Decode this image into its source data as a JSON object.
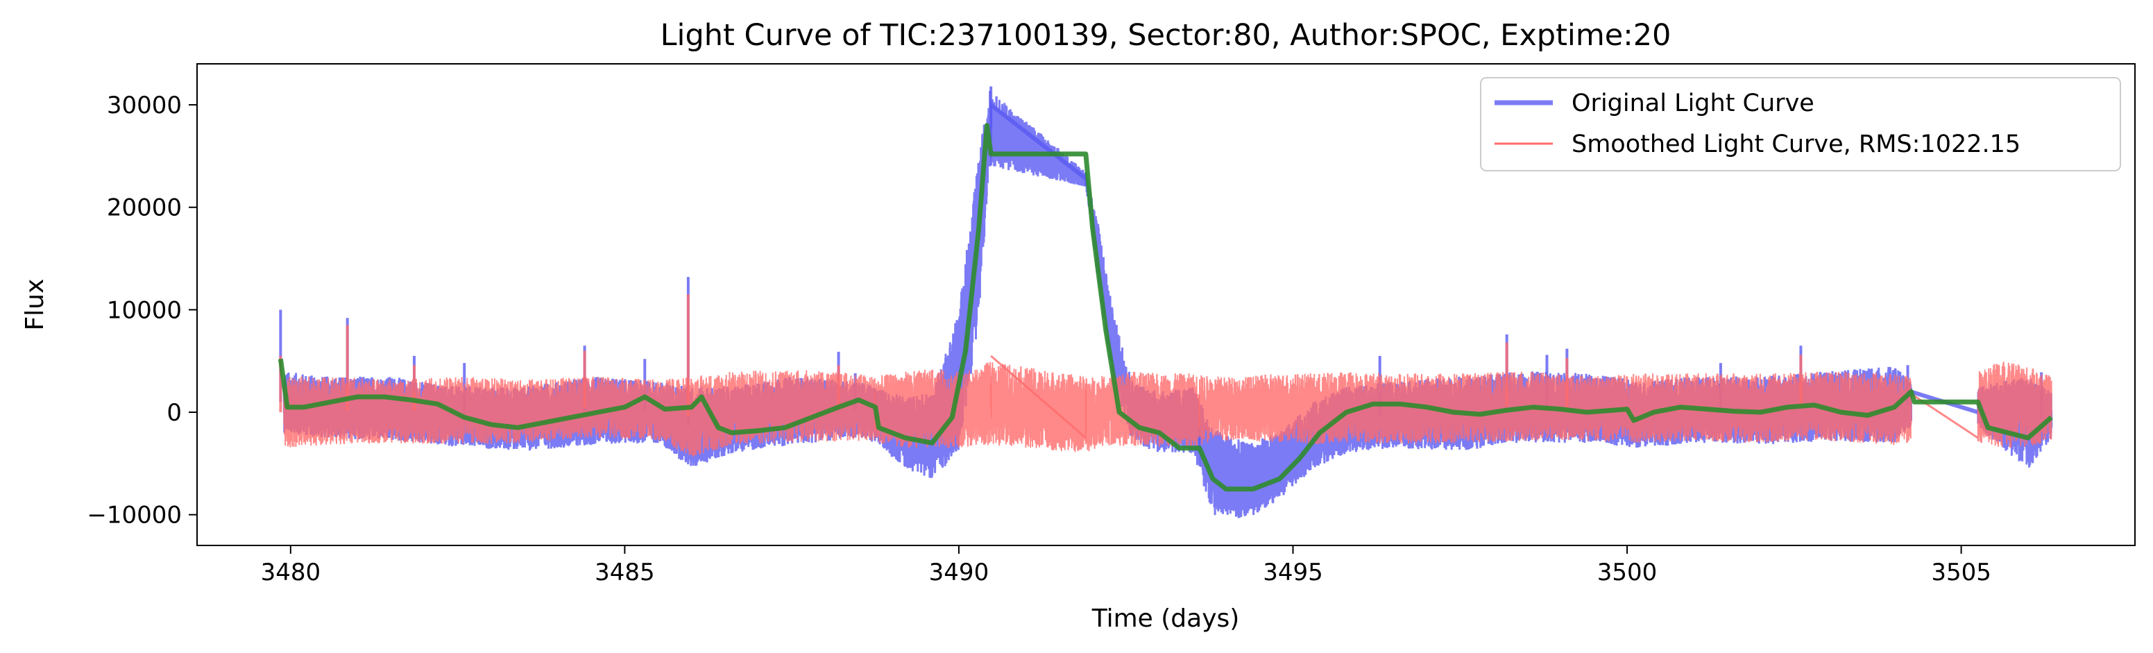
{
  "chart_data": {
    "type": "line",
    "title": "Light Curve of TIC:237100139, Sector:80, Author:SPOC, Exptime:20",
    "xlabel": "Time (days)",
    "ylabel": "Flux",
    "xlim": [
      3478.6,
      3507.6
    ],
    "ylim": [
      -13000,
      34000
    ],
    "xticks": [
      3480,
      3485,
      3490,
      3495,
      3500,
      3505
    ],
    "xtick_labels": [
      "3480",
      "3485",
      "3490",
      "3495",
      "3500",
      "3505"
    ],
    "yticks": [
      -10000,
      0,
      10000,
      20000,
      30000
    ],
    "ytick_labels": [
      "−10000",
      "0",
      "10000",
      "20000",
      "30000"
    ],
    "grid": false,
    "legend_position": "top-right",
    "segments": [
      [
        3479.9,
        3488.75
      ],
      [
        3488.75,
        3490.48
      ],
      [
        3490.48,
        3491.9
      ],
      [
        3491.9,
        3493.6
      ],
      [
        3493.6,
        3504.25
      ],
      [
        3505.25,
        3506.35
      ]
    ],
    "series": [
      {
        "name": "Original Light Curve",
        "color": "#5a5af2",
        "band_low": [
          [
            3479.9,
            -2000
          ],
          [
            3480.5,
            -2500
          ],
          [
            3481.5,
            -2800
          ],
          [
            3482.5,
            -3400
          ],
          [
            3483.5,
            -3800
          ],
          [
            3484.5,
            -3200
          ],
          [
            3485.5,
            -3000
          ],
          [
            3486.0,
            -5500
          ],
          [
            3486.6,
            -4000
          ],
          [
            3487.5,
            -3200
          ],
          [
            3488.5,
            -2500
          ],
          [
            3488.75,
            -3000
          ],
          [
            3489.2,
            -5500
          ],
          [
            3489.6,
            -6500
          ],
          [
            3490.0,
            -4000
          ],
          [
            3490.3,
            9000
          ],
          [
            3490.45,
            24000
          ],
          [
            3491.9,
            22000
          ],
          [
            3492.1,
            12000
          ],
          [
            3492.3,
            3000
          ],
          [
            3492.6,
            -3000
          ],
          [
            3493.0,
            -4000
          ],
          [
            3493.5,
            -4000
          ],
          [
            3493.8,
            -10000
          ],
          [
            3494.3,
            -10500
          ],
          [
            3494.8,
            -8500
          ],
          [
            3495.3,
            -5500
          ],
          [
            3495.8,
            -4000
          ],
          [
            3496.5,
            -3500
          ],
          [
            3497.5,
            -3800
          ],
          [
            3498.5,
            -3000
          ],
          [
            3499.5,
            -3000
          ],
          [
            3500.2,
            -3600
          ],
          [
            3501.0,
            -3000
          ],
          [
            3502.0,
            -3200
          ],
          [
            3503.0,
            -2800
          ],
          [
            3504.0,
            -3000
          ],
          [
            3504.25,
            -1500
          ],
          [
            3505.25,
            -1500
          ],
          [
            3505.6,
            -3500
          ],
          [
            3506.0,
            -5500
          ],
          [
            3506.35,
            -3000
          ]
        ],
        "band_high": [
          [
            3479.9,
            4000
          ],
          [
            3480.5,
            3500
          ],
          [
            3481.5,
            3500
          ],
          [
            3482.5,
            2500
          ],
          [
            3483.5,
            2500
          ],
          [
            3484.5,
            3500
          ],
          [
            3485.5,
            3000
          ],
          [
            3486.0,
            2500
          ],
          [
            3486.6,
            2500
          ],
          [
            3487.5,
            3500
          ],
          [
            3488.5,
            3000
          ],
          [
            3488.75,
            2500
          ],
          [
            3489.2,
            1500
          ],
          [
            3489.6,
            2000
          ],
          [
            3490.0,
            10000
          ],
          [
            3490.3,
            25000
          ],
          [
            3490.45,
            31500
          ],
          [
            3491.9,
            23500
          ],
          [
            3492.1,
            18000
          ],
          [
            3492.3,
            10000
          ],
          [
            3492.6,
            3000
          ],
          [
            3493.0,
            2000
          ],
          [
            3493.5,
            2500
          ],
          [
            3493.8,
            -1500
          ],
          [
            3494.3,
            -3000
          ],
          [
            3494.8,
            -2000
          ],
          [
            3495.3,
            1000
          ],
          [
            3495.8,
            2500
          ],
          [
            3496.5,
            3000
          ],
          [
            3497.5,
            3500
          ],
          [
            3498.5,
            4000
          ],
          [
            3499.5,
            3800
          ],
          [
            3500.2,
            3000
          ],
          [
            3501.0,
            3500
          ],
          [
            3502.0,
            3500
          ],
          [
            3503.0,
            4000
          ],
          [
            3504.0,
            4500
          ],
          [
            3504.25,
            3000
          ],
          [
            3505.25,
            2500
          ],
          [
            3505.6,
            3000
          ],
          [
            3506.0,
            3500
          ],
          [
            3506.35,
            2000
          ]
        ],
        "spikes": [
          [
            3479.85,
            10000
          ],
          [
            3480.85,
            9200
          ],
          [
            3481.85,
            5500
          ],
          [
            3482.6,
            4800
          ],
          [
            3484.4,
            6500
          ],
          [
            3485.3,
            5200
          ],
          [
            3485.95,
            13200
          ],
          [
            3488.2,
            5900
          ],
          [
            3488.45,
            3800
          ],
          [
            3490.48,
            31800
          ],
          [
            3496.3,
            5500
          ],
          [
            3498.2,
            7600
          ],
          [
            3498.8,
            5600
          ],
          [
            3499.1,
            6200
          ],
          [
            3501.4,
            4800
          ],
          [
            3502.6,
            6500
          ],
          [
            3504.2,
            4600
          ],
          [
            3506.2,
            3900
          ]
        ],
        "line": [
          [
            3490.48,
            30000
          ],
          [
            3491.9,
            22800
          ],
          [
            3504.25,
            2000
          ],
          [
            3505.25,
            0
          ]
        ]
      },
      {
        "name": "Smoothed Light Curve, RMS:1022.15",
        "color": "#ff6b6b",
        "band_low": [
          [
            3479.9,
            -3500
          ],
          [
            3480.5,
            -3200
          ],
          [
            3481.5,
            -3000
          ],
          [
            3482.5,
            -3200
          ],
          [
            3483.5,
            -3000
          ],
          [
            3484.5,
            -2500
          ],
          [
            3485.5,
            -2800
          ],
          [
            3486.0,
            -4500
          ],
          [
            3486.6,
            -3200
          ],
          [
            3487.5,
            -3000
          ],
          [
            3488.5,
            -2800
          ],
          [
            3488.75,
            -3000
          ],
          [
            3489.2,
            -3500
          ],
          [
            3489.6,
            -3500
          ],
          [
            3490.0,
            -3500
          ],
          [
            3490.3,
            -3200
          ],
          [
            3490.45,
            -3200
          ],
          [
            3491.9,
            -4000
          ],
          [
            3492.1,
            -3500
          ],
          [
            3492.3,
            -3200
          ],
          [
            3492.6,
            -3500
          ],
          [
            3493.0,
            -3500
          ],
          [
            3493.5,
            -3500
          ],
          [
            3493.8,
            -2800
          ],
          [
            3494.3,
            -2800
          ],
          [
            3494.8,
            -3000
          ],
          [
            3495.3,
            -3200
          ],
          [
            3495.8,
            -3000
          ],
          [
            3496.5,
            -3200
          ],
          [
            3497.5,
            -3000
          ],
          [
            3498.5,
            -2800
          ],
          [
            3499.5,
            -2800
          ],
          [
            3500.2,
            -3000
          ],
          [
            3501.0,
            -2800
          ],
          [
            3502.0,
            -3000
          ],
          [
            3503.0,
            -2800
          ],
          [
            3504.0,
            -3200
          ],
          [
            3504.25,
            -3000
          ],
          [
            3505.25,
            -3000
          ],
          [
            3505.6,
            -3500
          ],
          [
            3506.0,
            -3500
          ],
          [
            3506.35,
            -2800
          ]
        ],
        "band_high": [
          [
            3479.9,
            3500
          ],
          [
            3480.5,
            3500
          ],
          [
            3481.5,
            3200
          ],
          [
            3482.5,
            3500
          ],
          [
            3483.5,
            3200
          ],
          [
            3484.5,
            3500
          ],
          [
            3485.5,
            3200
          ],
          [
            3486.0,
            3500
          ],
          [
            3486.6,
            4000
          ],
          [
            3487.5,
            4200
          ],
          [
            3488.5,
            3800
          ],
          [
            3488.75,
            3500
          ],
          [
            3489.2,
            4000
          ],
          [
            3489.6,
            4200
          ],
          [
            3490.0,
            4000
          ],
          [
            3490.3,
            4200
          ],
          [
            3490.45,
            5000
          ],
          [
            3491.9,
            3500
          ],
          [
            3492.1,
            3500
          ],
          [
            3492.3,
            3800
          ],
          [
            3492.6,
            4000
          ],
          [
            3493.0,
            3800
          ],
          [
            3493.5,
            3800
          ],
          [
            3493.8,
            3500
          ],
          [
            3494.3,
            3500
          ],
          [
            3494.8,
            3800
          ],
          [
            3495.3,
            3800
          ],
          [
            3495.8,
            4000
          ],
          [
            3496.5,
            3800
          ],
          [
            3497.5,
            3800
          ],
          [
            3498.5,
            4000
          ],
          [
            3499.5,
            3500
          ],
          [
            3500.2,
            3800
          ],
          [
            3501.0,
            3800
          ],
          [
            3502.0,
            3800
          ],
          [
            3503.0,
            4000
          ],
          [
            3504.0,
            3800
          ],
          [
            3504.25,
            3500
          ],
          [
            3505.25,
            4000
          ],
          [
            3505.6,
            5000
          ],
          [
            3506.0,
            4500
          ],
          [
            3506.35,
            3500
          ]
        ],
        "spikes": [
          [
            3479.85,
            5500
          ],
          [
            3480.85,
            8500
          ],
          [
            3481.85,
            4600
          ],
          [
            3484.4,
            6000
          ],
          [
            3485.95,
            11500
          ],
          [
            3488.2,
            4600
          ],
          [
            3498.2,
            6800
          ],
          [
            3499.1,
            5300
          ],
          [
            3502.6,
            5600
          ]
        ],
        "line": [
          [
            3490.48,
            5500
          ],
          [
            3491.9,
            -2500
          ],
          [
            3504.25,
            1800
          ],
          [
            3505.25,
            -2500
          ]
        ]
      },
      {
        "name": "",
        "color": "#2e8b2e",
        "values": [
          [
            3479.85,
            5200
          ],
          [
            3479.95,
            500
          ],
          [
            3480.2,
            500
          ],
          [
            3480.6,
            1000
          ],
          [
            3481.0,
            1500
          ],
          [
            3481.4,
            1500
          ],
          [
            3481.8,
            1200
          ],
          [
            3482.2,
            800
          ],
          [
            3482.6,
            -500
          ],
          [
            3483.0,
            -1200
          ],
          [
            3483.4,
            -1500
          ],
          [
            3483.8,
            -1000
          ],
          [
            3484.2,
            -500
          ],
          [
            3484.6,
            0
          ],
          [
            3485.0,
            500
          ],
          [
            3485.3,
            1500
          ],
          [
            3485.6,
            300
          ],
          [
            3486.0,
            500
          ],
          [
            3486.15,
            1500
          ],
          [
            3486.4,
            -1500
          ],
          [
            3486.6,
            -2000
          ],
          [
            3487.0,
            -1800
          ],
          [
            3487.4,
            -1500
          ],
          [
            3487.8,
            -500
          ],
          [
            3488.2,
            500
          ],
          [
            3488.5,
            1200
          ],
          [
            3488.75,
            500
          ],
          [
            3488.8,
            -1500
          ],
          [
            3489.2,
            -2500
          ],
          [
            3489.6,
            -3000
          ],
          [
            3489.9,
            -500
          ],
          [
            3490.1,
            6000
          ],
          [
            3490.3,
            18000
          ],
          [
            3490.42,
            28000
          ],
          [
            3490.48,
            25200
          ],
          [
            3491.9,
            25200
          ],
          [
            3492.0,
            18000
          ],
          [
            3492.2,
            8000
          ],
          [
            3492.4,
            0
          ],
          [
            3492.7,
            -1500
          ],
          [
            3493.0,
            -2000
          ],
          [
            3493.3,
            -3500
          ],
          [
            3493.6,
            -3500
          ],
          [
            3493.8,
            -6500
          ],
          [
            3494.0,
            -7500
          ],
          [
            3494.4,
            -7500
          ],
          [
            3494.8,
            -6500
          ],
          [
            3495.1,
            -4500
          ],
          [
            3495.4,
            -2000
          ],
          [
            3495.8,
            0
          ],
          [
            3496.2,
            800
          ],
          [
            3496.6,
            800
          ],
          [
            3497.0,
            500
          ],
          [
            3497.4,
            0
          ],
          [
            3497.8,
            -200
          ],
          [
            3498.2,
            200
          ],
          [
            3498.6,
            500
          ],
          [
            3499.0,
            300
          ],
          [
            3499.4,
            0
          ],
          [
            3499.8,
            200
          ],
          [
            3500.0,
            300
          ],
          [
            3500.1,
            -800
          ],
          [
            3500.4,
            0
          ],
          [
            3500.8,
            500
          ],
          [
            3501.2,
            300
          ],
          [
            3501.6,
            100
          ],
          [
            3502.0,
            0
          ],
          [
            3502.4,
            500
          ],
          [
            3502.8,
            700
          ],
          [
            3503.2,
            0
          ],
          [
            3503.6,
            -300
          ],
          [
            3504.0,
            500
          ],
          [
            3504.25,
            2000
          ],
          [
            3504.3,
            1000
          ],
          [
            3505.25,
            1000
          ],
          [
            3505.4,
            -1500
          ],
          [
            3505.7,
            -2000
          ],
          [
            3506.0,
            -2500
          ],
          [
            3506.35,
            -500
          ]
        ]
      }
    ]
  }
}
